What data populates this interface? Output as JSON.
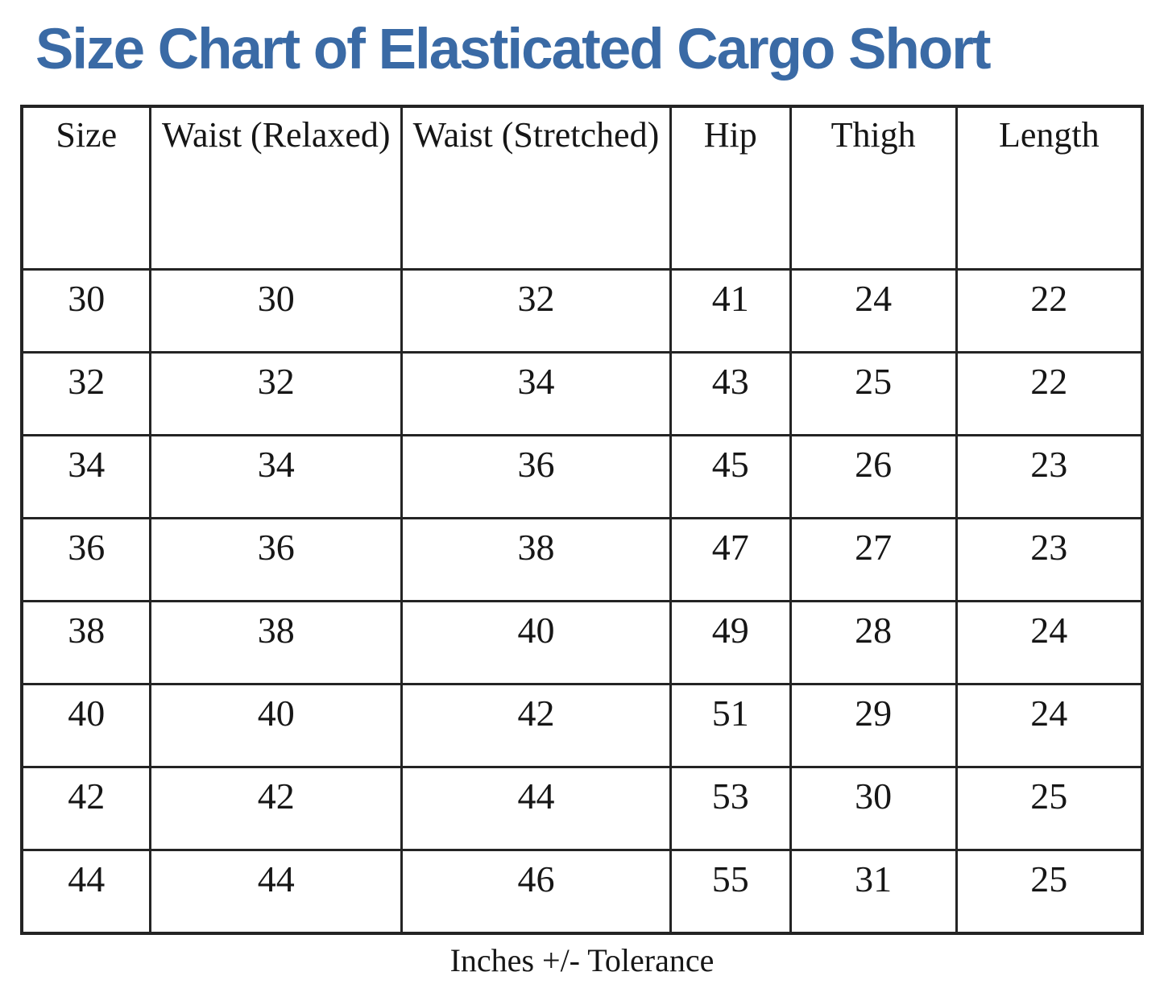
{
  "title": "Size Chart of Elasticated Cargo Short",
  "footer_note": "Inches +/- Tolerance",
  "accent_color": "#3A6AA5",
  "border_color": "#242424",
  "chart_data": {
    "type": "table",
    "title": "Size Chart of Elasticated Cargo Short",
    "columns": [
      "Size",
      "Waist (Relaxed)",
      "Waist (Stretched)",
      "Hip",
      "Thigh",
      "Length"
    ],
    "rows": [
      [
        "30",
        "30",
        "32",
        "41",
        "24",
        "22"
      ],
      [
        "32",
        "32",
        "34",
        "43",
        "25",
        "22"
      ],
      [
        "34",
        "34",
        "36",
        "45",
        "26",
        "23"
      ],
      [
        "36",
        "36",
        "38",
        "47",
        "27",
        "23"
      ],
      [
        "38",
        "38",
        "40",
        "49",
        "28",
        "24"
      ],
      [
        "40",
        "40",
        "42",
        "51",
        "29",
        "24"
      ],
      [
        "42",
        "42",
        "44",
        "53",
        "30",
        "25"
      ],
      [
        "44",
        "44",
        "46",
        "55",
        "31",
        "25"
      ]
    ],
    "units_note": "Inches +/- Tolerance",
    "layout": {
      "column_width_percents": [
        11.5,
        22.4,
        24.0,
        10.7,
        14.8,
        16.6
      ],
      "header_text_valign": "top",
      "cell_text_valign": "top"
    }
  }
}
